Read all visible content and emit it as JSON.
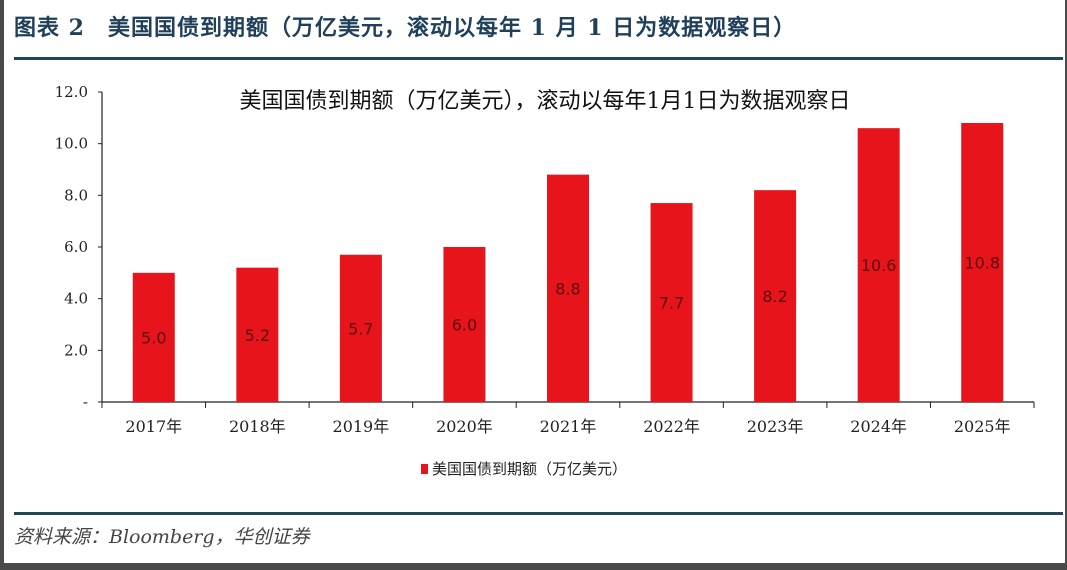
{
  "header": {
    "title": "图表 2　美国国债到期额（万亿美元，滚动以每年 1 月 1 日为数据观察日）"
  },
  "source": "资料来源：Bloomberg，华创证券",
  "chart_data": {
    "type": "bar",
    "title": "美国国债到期额（万亿美元），滚动以每年1月1日为数据观察日",
    "categories": [
      "2017年",
      "2018年",
      "2019年",
      "2020年",
      "2021年",
      "2022年",
      "2023年",
      "2024年",
      "2025年"
    ],
    "series": [
      {
        "name": "美国国债到期额（万亿美元）",
        "values": [
          5.0,
          5.2,
          5.7,
          6.0,
          8.8,
          7.7,
          8.2,
          10.6,
          10.8
        ],
        "color": "#e8141c"
      }
    ],
    "data_labels": [
      "5.0",
      "5.2",
      "5.7",
      "6.0",
      "8.8",
      "7.7",
      "8.2",
      "10.6",
      "10.8"
    ],
    "yticks": [
      "-",
      "2.0",
      "4.0",
      "6.0",
      "8.0",
      "10.0",
      "12.0"
    ],
    "ylim": [
      0,
      12
    ],
    "grid": false,
    "legend": "bottom"
  }
}
